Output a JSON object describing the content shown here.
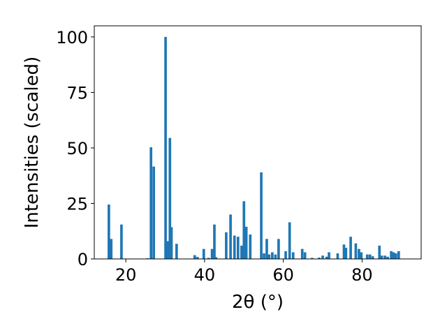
{
  "chart_data": {
    "type": "bar",
    "xlabel": "2θ (°)",
    "ylabel": "Intensities (scaled)",
    "xlim": [
      12,
      95
    ],
    "ylim": [
      0,
      105
    ],
    "xticks": [
      20,
      40,
      60,
      80
    ],
    "yticks": [
      0,
      25,
      50,
      75,
      100
    ],
    "bar_color": "#1f77b4",
    "grid": false,
    "points": [
      {
        "x": 15.7,
        "y": 24.5
      },
      {
        "x": 16.3,
        "y": 9.0
      },
      {
        "x": 18.9,
        "y": 15.5
      },
      {
        "x": 25.5,
        "y": 0.3
      },
      {
        "x": 26.4,
        "y": 50.3
      },
      {
        "x": 27.1,
        "y": 41.6
      },
      {
        "x": 30.1,
        "y": 100.0
      },
      {
        "x": 30.6,
        "y": 8.0
      },
      {
        "x": 31.2,
        "y": 54.5
      },
      {
        "x": 31.6,
        "y": 14.3
      },
      {
        "x": 32.9,
        "y": 6.8
      },
      {
        "x": 37.5,
        "y": 1.7
      },
      {
        "x": 38.2,
        "y": 0.9
      },
      {
        "x": 39.8,
        "y": 4.5
      },
      {
        "x": 41.0,
        "y": 0.5
      },
      {
        "x": 41.9,
        "y": 4.5
      },
      {
        "x": 42.5,
        "y": 15.5
      },
      {
        "x": 42.9,
        "y": 0.8
      },
      {
        "x": 45.5,
        "y": 12.0
      },
      {
        "x": 46.6,
        "y": 20.0
      },
      {
        "x": 47.6,
        "y": 10.5
      },
      {
        "x": 48.5,
        "y": 10.0
      },
      {
        "x": 49.4,
        "y": 6.0
      },
      {
        "x": 50.0,
        "y": 26.0
      },
      {
        "x": 50.6,
        "y": 14.5
      },
      {
        "x": 51.6,
        "y": 11.0
      },
      {
        "x": 54.4,
        "y": 39.0
      },
      {
        "x": 55.1,
        "y": 2.5
      },
      {
        "x": 55.8,
        "y": 9.0
      },
      {
        "x": 56.4,
        "y": 2.0
      },
      {
        "x": 57.2,
        "y": 3.0
      },
      {
        "x": 58.0,
        "y": 2.0
      },
      {
        "x": 58.8,
        "y": 9.0
      },
      {
        "x": 60.6,
        "y": 3.5
      },
      {
        "x": 61.6,
        "y": 16.5
      },
      {
        "x": 62.5,
        "y": 3.0
      },
      {
        "x": 64.8,
        "y": 4.5
      },
      {
        "x": 65.5,
        "y": 3.0
      },
      {
        "x": 67.3,
        "y": 0.5
      },
      {
        "x": 69.1,
        "y": 0.6
      },
      {
        "x": 70.0,
        "y": 1.5
      },
      {
        "x": 71.0,
        "y": 1.0
      },
      {
        "x": 71.6,
        "y": 3.0
      },
      {
        "x": 73.8,
        "y": 2.5
      },
      {
        "x": 75.4,
        "y": 6.5
      },
      {
        "x": 75.9,
        "y": 5.0
      },
      {
        "x": 77.1,
        "y": 10.0
      },
      {
        "x": 78.4,
        "y": 7.0
      },
      {
        "x": 79.2,
        "y": 4.5
      },
      {
        "x": 79.8,
        "y": 3.0
      },
      {
        "x": 81.3,
        "y": 2.0
      },
      {
        "x": 82.0,
        "y": 2.0
      },
      {
        "x": 82.7,
        "y": 1.2
      },
      {
        "x": 84.4,
        "y": 6.0
      },
      {
        "x": 85.0,
        "y": 1.5
      },
      {
        "x": 85.8,
        "y": 1.5
      },
      {
        "x": 86.5,
        "y": 1.0
      },
      {
        "x": 87.4,
        "y": 3.5
      },
      {
        "x": 88.0,
        "y": 3.0
      },
      {
        "x": 88.6,
        "y": 2.5
      },
      {
        "x": 89.3,
        "y": 3.5
      }
    ]
  }
}
